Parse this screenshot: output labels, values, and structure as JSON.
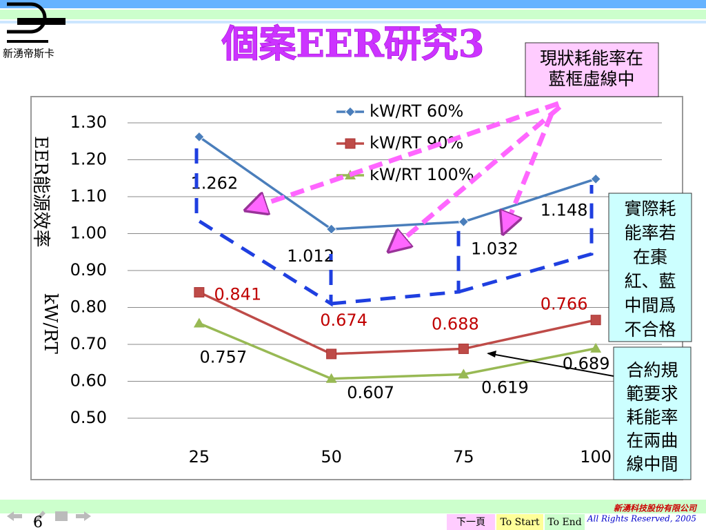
{
  "logo": "新湧帝斯卡",
  "chart_data": {
    "type": "line",
    "title": "個案EER研究3",
    "y_label": [
      "EER能源效率",
      "kW/RT"
    ],
    "categories": [
      "25",
      "50",
      "75",
      "100"
    ],
    "series": [
      {
        "name": "kW/RT 60%",
        "color": "#4a7ebb",
        "marker": "diamond",
        "label_color": "#000000",
        "values": [
          1.262,
          1.012,
          1.032,
          1.148
        ]
      },
      {
        "name": "kW/RT 90%",
        "color": "#be4b48",
        "marker": "square",
        "label_color": "#c00000",
        "values": [
          0.841,
          0.674,
          0.688,
          0.766
        ]
      },
      {
        "name": "kW/RT 100%",
        "color": "#98b954",
        "marker": "triangle",
        "label_color": "#000000",
        "values": [
          0.757,
          0.607,
          0.619,
          0.689
        ]
      }
    ],
    "ylim": [
      0.5,
      1.3
    ],
    "yticks": [
      {
        "value": 0.5,
        "label": "0.50"
      },
      {
        "value": 0.6,
        "label": "0.60"
      },
      {
        "value": 0.7,
        "label": "0.70"
      },
      {
        "value": 0.8,
        "label": "0.80"
      },
      {
        "value": 0.9,
        "label": "0.90"
      },
      {
        "value": 1.0,
        "label": "1.00"
      },
      {
        "value": 1.1,
        "label": "1.10"
      },
      {
        "value": 1.2,
        "label": "1.20"
      },
      {
        "value": 1.3,
        "label": "1.30"
      }
    ],
    "grid": true
  },
  "callouts": [
    {
      "lines": [
        "現狀耗能率在",
        "藍框虛線中"
      ]
    },
    {
      "lines": [
        "實際耗",
        "能率若",
        "在棗",
        "紅、藍",
        "中間爲",
        "不合格"
      ]
    },
    {
      "lines": [
        "合約規",
        "範要求",
        "耗能率",
        "在兩曲",
        "線中間"
      ]
    }
  ],
  "footer": {
    "page": "6",
    "buttons": [
      "下一頁",
      "To Start",
      "To End"
    ],
    "company": "新湧科技股份有限公司",
    "rights": "All Rights Reserved, 2005"
  }
}
